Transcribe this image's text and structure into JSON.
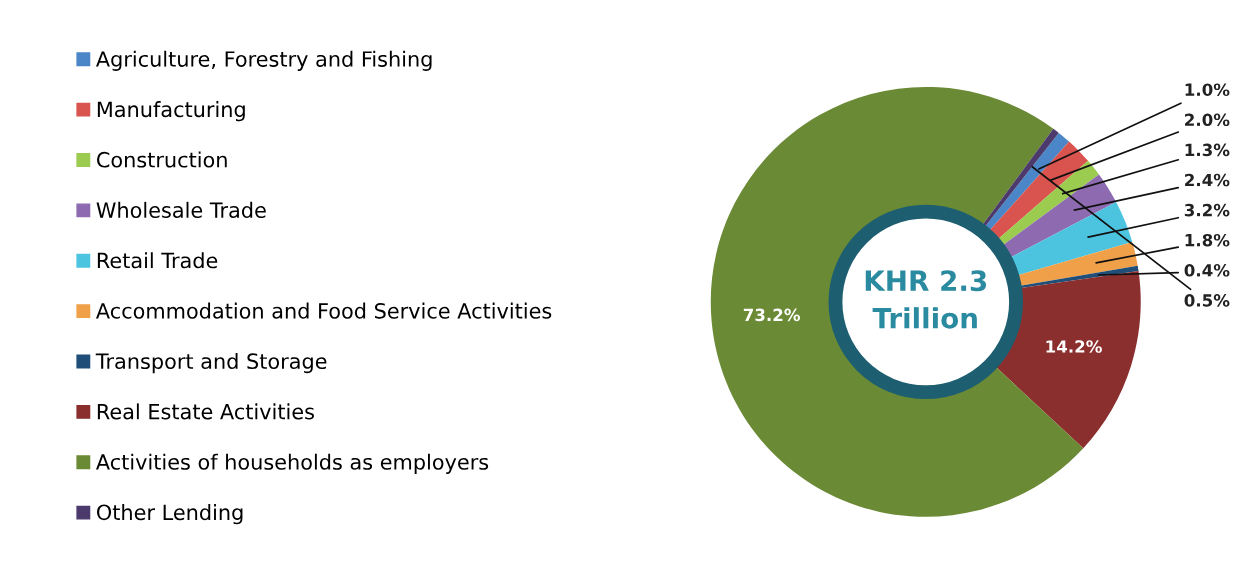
{
  "chart_data": {
    "type": "donut",
    "categories": [
      "Agriculture, Forestry and Fishing",
      "Manufacturing",
      "Construction",
      "Wholesale Trade",
      "Retail Trade",
      "Accommodation and Food Service Activities",
      "Transport and Storage",
      "Real Estate Activities",
      "Activities of households as employers",
      "Other Lending"
    ],
    "values": [
      1.0,
      2.0,
      1.3,
      2.4,
      3.2,
      1.8,
      0.4,
      14.2,
      73.2,
      0.5
    ],
    "value_labels": [
      "1.0%",
      "2.0%",
      "1.3%",
      "2.4%",
      "3.2%",
      "1.8%",
      "0.4%",
      "14.2%",
      "73.2%",
      "0.5%"
    ],
    "colors": [
      "#4a86c8",
      "#d9534f",
      "#9bcc4f",
      "#8e6bb0",
      "#4cc4e0",
      "#f0a048",
      "#1f4e79",
      "#8b2e2e",
      "#6b8a35",
      "#4b3a6b"
    ],
    "annotations": [
      "KHR 2.3\nTrillion"
    ],
    "legend": "left"
  }
}
